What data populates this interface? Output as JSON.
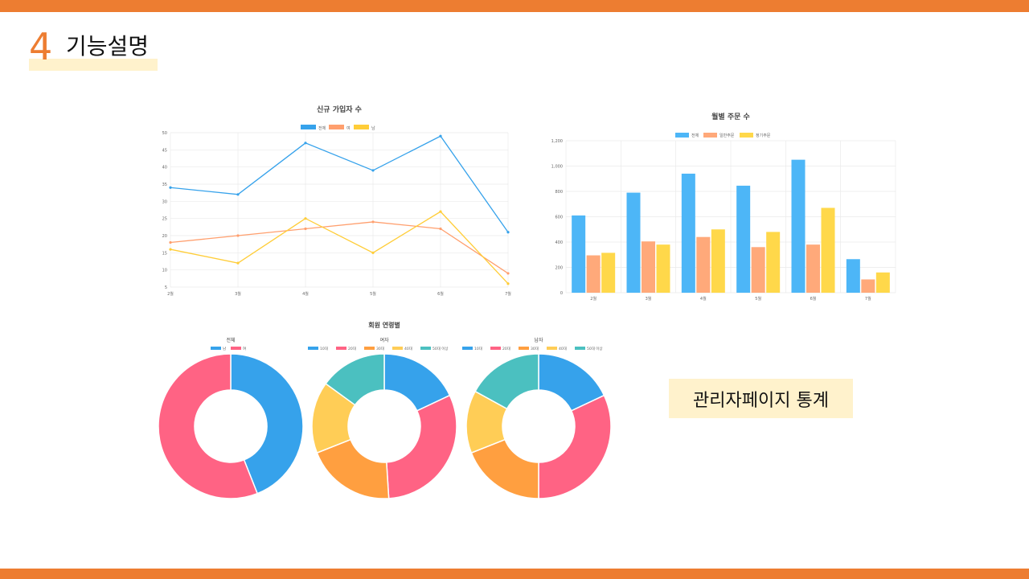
{
  "slide": {
    "number": "4",
    "title": "기능설명",
    "callout": "관리자페이지 통계",
    "accent": "#ED7D31",
    "highlight": "#FFF2CC"
  },
  "chart_data": [
    {
      "type": "line",
      "title": "신규 가입자 수",
      "categories": [
        "2월",
        "3월",
        "4월",
        "5월",
        "6월",
        "7월"
      ],
      "ylim": [
        5,
        50
      ],
      "yticks": [
        5,
        10,
        15,
        20,
        25,
        30,
        35,
        40,
        45,
        50
      ],
      "grid": true,
      "legend_position": "top",
      "series": [
        {
          "name": "전체",
          "color": "#36A2EB",
          "values": [
            34,
            32,
            47,
            39,
            49,
            21
          ]
        },
        {
          "name": "여",
          "color": "#FF9F6E",
          "values": [
            18,
            20,
            22,
            24,
            22,
            9
          ]
        },
        {
          "name": "남",
          "color": "#FFCD38",
          "values": [
            16,
            12,
            25,
            15,
            27,
            6
          ]
        }
      ]
    },
    {
      "type": "bar",
      "title": "월별 주문 수",
      "categories": [
        "2월",
        "3월",
        "4월",
        "5월",
        "6월",
        "7월"
      ],
      "ylim": [
        0,
        1200
      ],
      "yticks": [
        0,
        200,
        400,
        600,
        800,
        1000,
        1200
      ],
      "ytick_labels": [
        "0",
        "200",
        "400",
        "600",
        "800",
        "1,000",
        "1,200"
      ],
      "grid": true,
      "legend_position": "top",
      "series": [
        {
          "name": "전체",
          "color": "#4DB6F7",
          "values": [
            610,
            790,
            940,
            845,
            1050,
            265
          ]
        },
        {
          "name": "일반주문",
          "color": "#FFA97A",
          "values": [
            295,
            405,
            440,
            360,
            380,
            105
          ]
        },
        {
          "name": "정기주문",
          "color": "#FFD84A",
          "values": [
            315,
            380,
            500,
            480,
            670,
            160
          ]
        }
      ]
    },
    {
      "type": "pie",
      "title": "회원 연령별",
      "charts": [
        {
          "title": "전체",
          "labels": [
            "남",
            "여"
          ],
          "colors": [
            "#36A2EB",
            "#FF6384"
          ],
          "values": [
            44,
            56
          ]
        },
        {
          "title": "여자",
          "labels": [
            "10대",
            "20대",
            "30대",
            "40대",
            "50대 이상"
          ],
          "colors": [
            "#36A2EB",
            "#FF6384",
            "#FF9F40",
            "#FFCD56",
            "#4BC0C0"
          ],
          "values": [
            18,
            31,
            20,
            16,
            15
          ]
        },
        {
          "title": "남자",
          "labels": [
            "10대",
            "20대",
            "30대",
            "40대",
            "50대 이상"
          ],
          "colors": [
            "#36A2EB",
            "#FF6384",
            "#FF9F40",
            "#FFCD56",
            "#4BC0C0"
          ],
          "values": [
            18,
            32,
            19,
            14,
            17
          ]
        }
      ]
    }
  ]
}
